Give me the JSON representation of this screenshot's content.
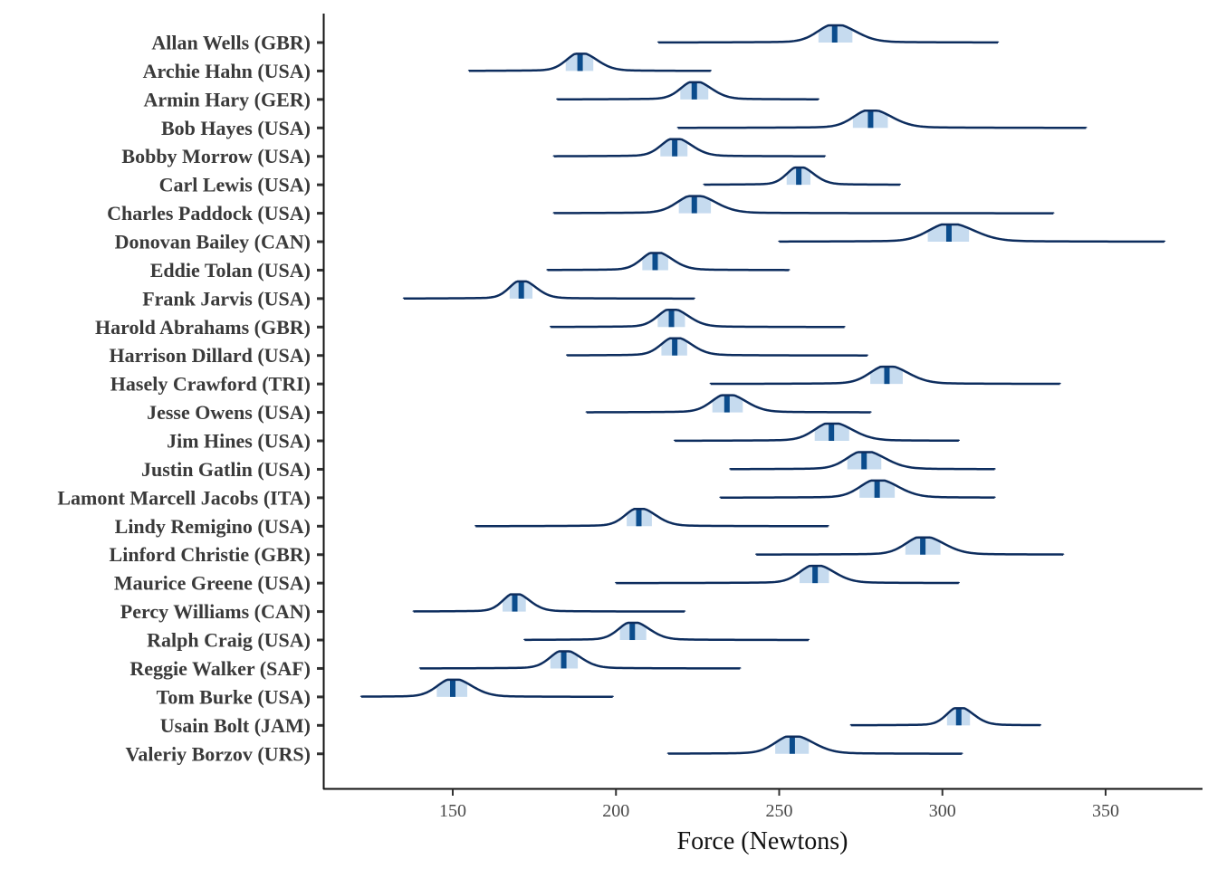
{
  "chart_data": {
    "type": "ridge-interval",
    "xlabel": "Force (Newtons)",
    "ylabel": "",
    "title": "",
    "xlim": [
      110,
      380
    ],
    "xticks": [
      150,
      200,
      250,
      300,
      350
    ],
    "grid": false,
    "legend": "none",
    "colors": {
      "line": "#0d2d5e",
      "median": "#0b4c8c",
      "interval": "#c6dbef",
      "axis": "#111111"
    },
    "categories": [
      "Allan Wells (GBR)",
      "Archie Hahn (USA)",
      "Armin Hary (GER)",
      "Bob Hayes (USA)",
      "Bobby Morrow (USA)",
      "Carl Lewis (USA)",
      "Charles Paddock (USA)",
      "Donovan Bailey (CAN)",
      "Eddie Tolan (USA)",
      "Frank Jarvis (USA)",
      "Harold Abrahams (GBR)",
      "Harrison Dillard (USA)",
      "Hasely Crawford (TRI)",
      "Jesse Owens (USA)",
      "Jim Hines (USA)",
      "Justin Gatlin (USA)",
      "Lamont Marcell Jacobs (ITA)",
      "Lindy Remigino (USA)",
      "Linford Christie (GBR)",
      "Maurice Greene (USA)",
      "Percy Williams (CAN)",
      "Ralph Craig (USA)",
      "Reggie Walker (SAF)",
      "Tom Burke (USA)",
      "Usain Bolt (JAM)",
      "Valeriy Borzov (URS)"
    ],
    "series": [
      {
        "median": 267,
        "min": 213,
        "max": 317,
        "width": 5
      },
      {
        "median": 189,
        "min": 155,
        "max": 229,
        "width": 4
      },
      {
        "median": 224,
        "min": 182,
        "max": 262,
        "width": 4
      },
      {
        "median": 278,
        "min": 219,
        "max": 344,
        "width": 5
      },
      {
        "median": 218,
        "min": 181,
        "max": 264,
        "width": 4
      },
      {
        "median": 256,
        "min": 227,
        "max": 287,
        "width": 3.5
      },
      {
        "median": 224,
        "min": 181,
        "max": 334,
        "width": 5
      },
      {
        "median": 302,
        "min": 250,
        "max": 368,
        "width": 6
      },
      {
        "median": 212,
        "min": 179,
        "max": 253,
        "width": 4
      },
      {
        "median": 171,
        "min": 135,
        "max": 224,
        "width": 3.5
      },
      {
        "median": 217,
        "min": 180,
        "max": 270,
        "width": 4
      },
      {
        "median": 218,
        "min": 185,
        "max": 277,
        "width": 4
      },
      {
        "median": 283,
        "min": 229,
        "max": 336,
        "width": 5
      },
      {
        "median": 234,
        "min": 191,
        "max": 278,
        "width": 4.5
      },
      {
        "median": 266,
        "min": 218,
        "max": 305,
        "width": 5
      },
      {
        "median": 276,
        "min": 235,
        "max": 316,
        "width": 5
      },
      {
        "median": 280,
        "min": 232,
        "max": 316,
        "width": 5
      },
      {
        "median": 207,
        "min": 157,
        "max": 265,
        "width": 4
      },
      {
        "median": 294,
        "min": 243,
        "max": 337,
        "width": 5
      },
      {
        "median": 261,
        "min": 200,
        "max": 305,
        "width": 4.5
      },
      {
        "median": 169,
        "min": 138,
        "max": 221,
        "width": 3.5
      },
      {
        "median": 205,
        "min": 172,
        "max": 259,
        "width": 4
      },
      {
        "median": 184,
        "min": 140,
        "max": 238,
        "width": 4
      },
      {
        "median": 150,
        "min": 122,
        "max": 199,
        "width": 4.5
      },
      {
        "median": 305,
        "min": 272,
        "max": 330,
        "width": 3.5
      },
      {
        "median": 254,
        "min": 216,
        "max": 306,
        "width": 5
      }
    ]
  }
}
